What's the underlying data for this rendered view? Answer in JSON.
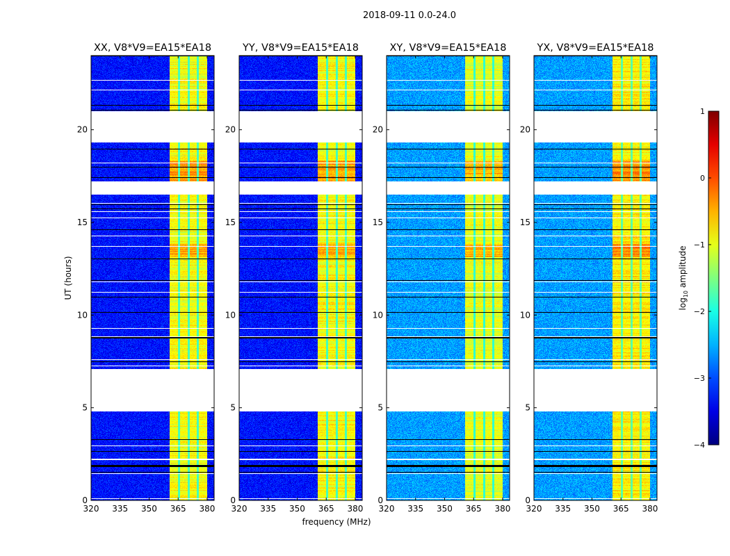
{
  "chart_data": {
    "type": "heatmap",
    "suptitle": "2018-09-11 0.0-24.0",
    "xlabel": "frequency (MHz)",
    "ylabel": "UT (hours)",
    "xlim": [
      320,
      383.6
    ],
    "ylim": [
      0,
      24
    ],
    "xticks": [
      320,
      335,
      350,
      365,
      380
    ],
    "yticks": [
      0,
      5,
      10,
      15,
      20
    ],
    "panels": [
      {
        "title": "XX, V8*V9=EA15*EA18",
        "band_level": -0.9,
        "bg_level": -3.3
      },
      {
        "title": "YY, V8*V9=EA15*EA18",
        "band_level": -0.9,
        "bg_level": -3.3
      },
      {
        "title": "XY, V8*V9=EA15*EA18",
        "band_level": -1.0,
        "bg_level": -2.6
      },
      {
        "title": "YX, V8*V9=EA15*EA18",
        "band_level": -0.8,
        "bg_level": -2.6
      }
    ],
    "band_mhz": [
      360.3,
      379.7
    ],
    "subband_gaps_mhz": [
      365.3,
      370.4,
      375.0
    ],
    "flagged_hours": [
      [
        4.8,
        7.1
      ],
      [
        16.5,
        17.2
      ],
      [
        19.3,
        21.0
      ]
    ],
    "colorbar": {
      "label": "log10 amplitude",
      "label_base": "log",
      "label_sub": "10",
      "label_rest": " amplitude",
      "range": [
        -4,
        1
      ],
      "ticks": [
        "1",
        "0",
        "−1",
        "−2",
        "−3",
        "−4"
      ],
      "colormap": "jet"
    }
  }
}
